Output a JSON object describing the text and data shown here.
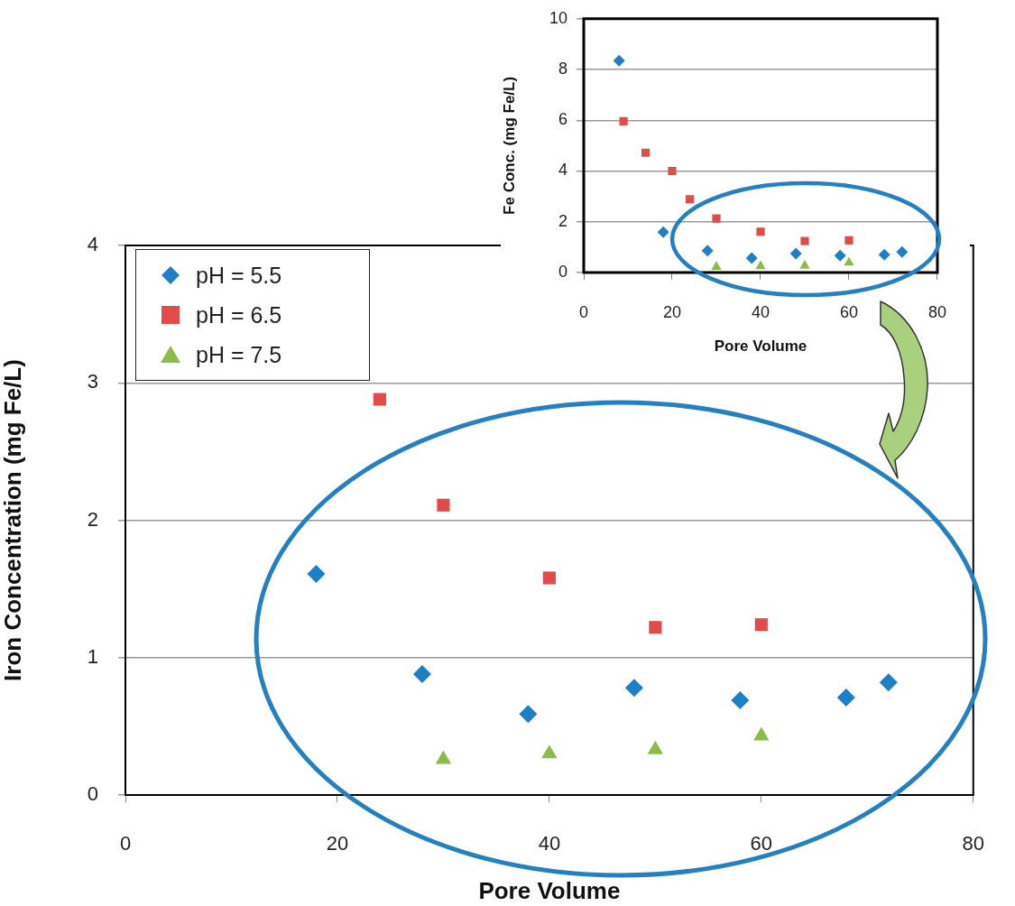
{
  "chart_data": [
    {
      "type": "scatter",
      "xlabel": "Pore Volume",
      "ylabel": "Iron Concentration (mg Fe/L)",
      "xlim": [
        0,
        80
      ],
      "xticks": [
        0,
        20,
        40,
        60,
        80
      ],
      "ylim": [
        0,
        4
      ],
      "yticks": [
        0,
        1,
        2,
        3,
        4
      ],
      "grid": "y",
      "legend": "top left",
      "series": [
        {
          "name": "pH = 5.5",
          "color": "#1f7fc4",
          "marker": "diamond",
          "x": [
            18,
            28,
            38,
            48,
            58,
            68,
            72
          ],
          "values": [
            1.61,
            0.88,
            0.59,
            0.78,
            0.69,
            0.71,
            0.82
          ]
        },
        {
          "name": "pH = 6.5",
          "color": "#e04c4c",
          "marker": "square",
          "x": [
            24,
            30,
            40,
            50,
            60
          ],
          "values": [
            2.88,
            2.11,
            1.58,
            1.22,
            1.24
          ]
        },
        {
          "name": "pH = 7.5",
          "color": "#8cbb4a",
          "marker": "triangle",
          "x": [
            30,
            40,
            50,
            60
          ],
          "values": [
            0.26,
            0.3,
            0.33,
            0.43
          ]
        }
      ]
    },
    {
      "type": "scatter",
      "xlabel": "Pore Volume",
      "ylabel": "Fe Conc. (mg Fe/L)",
      "xlim": [
        0,
        80
      ],
      "xticks": [
        0,
        20,
        40,
        60,
        80
      ],
      "ylim": [
        0,
        10
      ],
      "yticks": [
        0,
        2,
        4,
        6,
        8,
        10
      ],
      "grid": "y",
      "series": [
        {
          "color": "#1f7fc4",
          "marker": "diamond",
          "x": [
            8,
            18,
            28,
            38,
            48,
            58,
            68,
            72
          ],
          "values": [
            8.35,
            1.59,
            0.86,
            0.57,
            0.75,
            0.67,
            0.7,
            0.81
          ]
        },
        {
          "color": "#e04c4c",
          "marker": "square",
          "x": [
            9,
            14,
            20,
            24,
            30,
            40,
            50,
            60
          ],
          "values": [
            5.96,
            4.72,
            4.0,
            2.89,
            2.13,
            1.61,
            1.24,
            1.27
          ]
        },
        {
          "color": "#8cbb4a",
          "marker": "triangle",
          "x": [
            30,
            40,
            50,
            60
          ],
          "values": [
            0.22,
            0.25,
            0.27,
            0.39
          ]
        }
      ]
    }
  ]
}
